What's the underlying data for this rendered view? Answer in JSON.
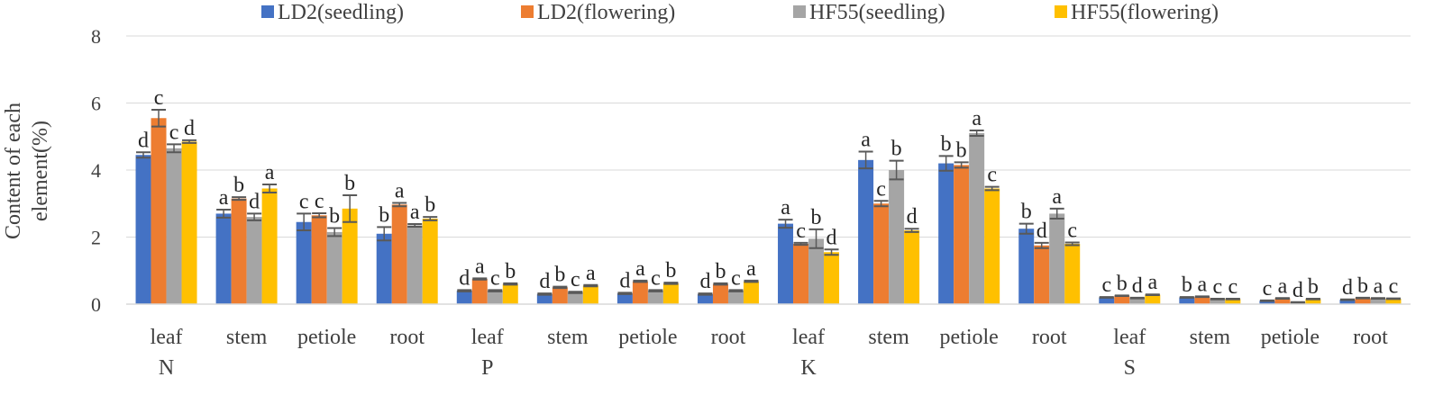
{
  "chart_data": {
    "type": "bar",
    "title": "",
    "xlabel": "",
    "ylabel_lines": [
      "Content of each",
      "element(%)"
    ],
    "ylim": [
      0,
      8
    ],
    "yticks": [
      0,
      2,
      4,
      6,
      8
    ],
    "grid": true,
    "legend_position": "top",
    "groups": [
      "N",
      "P",
      "K",
      "S"
    ],
    "tissues": [
      "leaf",
      "stem",
      "petiole",
      "root"
    ],
    "categories": [
      "leaf",
      "stem",
      "petiole",
      "root",
      "leaf",
      "stem",
      "petiole",
      "root",
      "leaf",
      "stem",
      "petiole",
      "root",
      "leaf",
      "stem",
      "petiole",
      "root"
    ],
    "series": [
      {
        "name": "LD2(seedling)",
        "color": "#4472C4",
        "values": [
          4.45,
          2.7,
          2.45,
          2.1,
          0.4,
          0.3,
          0.32,
          0.3,
          2.4,
          4.3,
          4.2,
          2.25,
          0.2,
          0.2,
          0.1,
          0.13
        ],
        "errors": [
          0.08,
          0.12,
          0.25,
          0.2,
          0.02,
          0.02,
          0.02,
          0.02,
          0.12,
          0.25,
          0.22,
          0.15,
          0.01,
          0.01,
          0.01,
          0.01
        ],
        "letters": [
          "d",
          "a",
          "c",
          "b",
          "d",
          "d",
          "d",
          "d",
          "a",
          "a",
          "b",
          "b",
          "c",
          "b",
          "c",
          "d"
        ]
      },
      {
        "name": "LD2(flowering)",
        "color": "#ED7D31",
        "values": [
          5.55,
          3.15,
          2.65,
          2.97,
          0.75,
          0.5,
          0.68,
          0.6,
          1.8,
          3.0,
          4.15,
          1.75,
          0.25,
          0.22,
          0.17,
          0.18
        ],
        "errors": [
          0.25,
          0.04,
          0.06,
          0.05,
          0.02,
          0.02,
          0.02,
          0.02,
          0.03,
          0.08,
          0.08,
          0.08,
          0.01,
          0.01,
          0.01,
          0.01
        ],
        "letters": [
          "c",
          "b",
          "c",
          "a",
          "a",
          "b",
          "a",
          "b",
          "c",
          "c",
          "b",
          "d",
          "b",
          "a",
          "a",
          "b"
        ]
      },
      {
        "name": "HF55(seedling)",
        "color": "#A5A5A5",
        "values": [
          4.65,
          2.6,
          2.15,
          2.35,
          0.4,
          0.35,
          0.4,
          0.4,
          1.95,
          4.0,
          5.1,
          2.7,
          0.18,
          0.15,
          0.05,
          0.17
        ],
        "errors": [
          0.12,
          0.1,
          0.12,
          0.04,
          0.02,
          0.02,
          0.02,
          0.02,
          0.28,
          0.28,
          0.08,
          0.15,
          0.01,
          0.01,
          0.01,
          0.01
        ],
        "letters": [
          "c",
          "d",
          "b",
          "a",
          "c",
          "c",
          "c",
          "c",
          "b",
          "b",
          "a",
          "a",
          "d",
          "c",
          "d",
          "a"
        ]
      },
      {
        "name": "HF55(flowering)",
        "color": "#FFC000",
        "values": [
          4.85,
          3.45,
          2.85,
          2.55,
          0.6,
          0.55,
          0.62,
          0.68,
          1.55,
          2.2,
          3.45,
          1.8,
          0.28,
          0.15,
          0.15,
          0.16
        ],
        "errors": [
          0.04,
          0.12,
          0.4,
          0.05,
          0.02,
          0.02,
          0.02,
          0.02,
          0.08,
          0.05,
          0.05,
          0.04,
          0.01,
          0.01,
          0.01,
          0.01
        ],
        "letters": [
          "d",
          "a",
          "b",
          "b",
          "b",
          "a",
          "b",
          "a",
          "d",
          "d",
          "c",
          "c",
          "a",
          "c",
          "b",
          "c"
        ]
      }
    ]
  }
}
